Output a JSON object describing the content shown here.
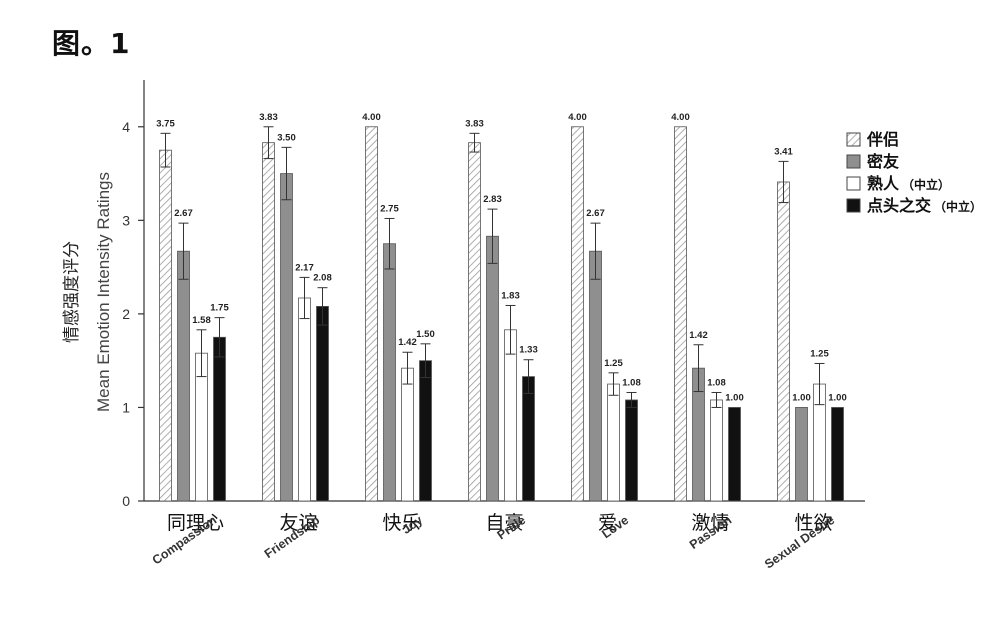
{
  "figure": {
    "title": "图。1"
  },
  "chart_data": {
    "type": "bar",
    "categories_cn": [
      "同理心",
      "友谊",
      "快乐",
      "自豪",
      "爱",
      "激情",
      "性欲"
    ],
    "categories_en": [
      "Compassion",
      "Friendship",
      "Joy",
      "Pride",
      "Love",
      "Passion",
      "Sexual Desire"
    ],
    "ylabel_en": "Mean Emotion Intensity Ratings",
    "ylabel_cn": "情感强度评分",
    "ylim": [
      0,
      4.5
    ],
    "yticks": [
      0,
      1,
      2,
      3,
      4
    ],
    "legend_position": "top-right",
    "series": [
      {
        "name": "伴侣",
        "name_suffix": "",
        "fill": "hatch",
        "values": [
          3.75,
          3.83,
          4.0,
          3.83,
          4.0,
          4.0,
          3.41
        ],
        "labels": [
          "3.75",
          "3.83",
          "4.00",
          "3.83",
          "4.00",
          "4.00",
          "3.41"
        ],
        "error": [
          0.18,
          0.17,
          0,
          0.1,
          0,
          0,
          0.22
        ]
      },
      {
        "name": "密友",
        "name_suffix": "",
        "fill": "#8f8f8f",
        "values": [
          2.67,
          3.5,
          2.75,
          2.83,
          2.67,
          1.42,
          1.0
        ],
        "labels": [
          "2.67",
          "3.50",
          "2.75",
          "2.83",
          "2.67",
          "1.42",
          "1.00"
        ],
        "error": [
          0.3,
          0.28,
          0.27,
          0.29,
          0.3,
          0.25,
          0
        ]
      },
      {
        "name": "熟人",
        "name_suffix": "（中立）",
        "fill": "#ffffff",
        "values": [
          1.58,
          2.17,
          1.42,
          1.83,
          1.25,
          1.08,
          1.25
        ],
        "labels": [
          "1.58",
          "2.17",
          "1.42",
          "1.83",
          "1.25",
          "1.08",
          "1.25"
        ],
        "error": [
          0.25,
          0.22,
          0.17,
          0.26,
          0.12,
          0.08,
          0.22
        ]
      },
      {
        "name": "点头之交",
        "name_suffix": "（中立）",
        "fill": "#111111",
        "values": [
          1.75,
          2.08,
          1.5,
          1.33,
          1.08,
          1.0,
          1.0
        ],
        "labels": [
          "1.75",
          "2.08",
          "1.50",
          "1.33",
          "1.08",
          "1.00",
          "1.00"
        ],
        "error": [
          0.21,
          0.2,
          0.18,
          0.18,
          0.08,
          0,
          0
        ]
      }
    ]
  }
}
